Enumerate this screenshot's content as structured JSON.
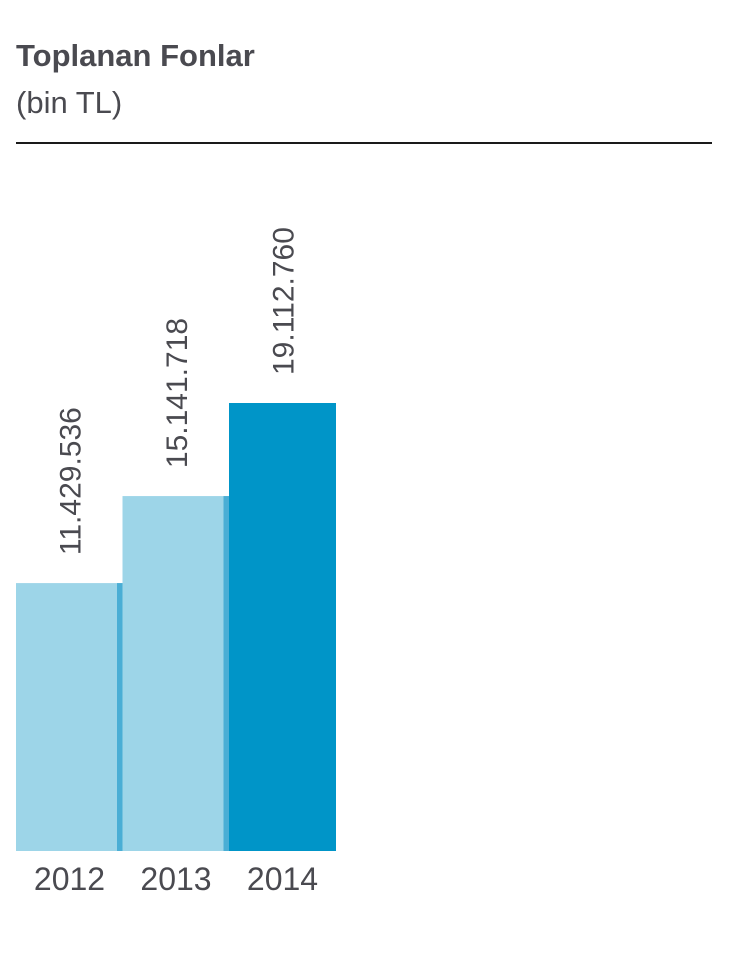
{
  "chart_data": {
    "type": "bar",
    "title": "Toplanan Fonlar",
    "subtitle": "(bin TL)",
    "categories": [
      "2012",
      "2013",
      "2014"
    ],
    "values": [
      11429536,
      15141718,
      19112760
    ],
    "value_labels": [
      "11.429.536",
      "15.141.718",
      "19.112.760"
    ],
    "colors": [
      "#9dd5e8",
      "#9dd5e8",
      "#0095c8"
    ]
  }
}
